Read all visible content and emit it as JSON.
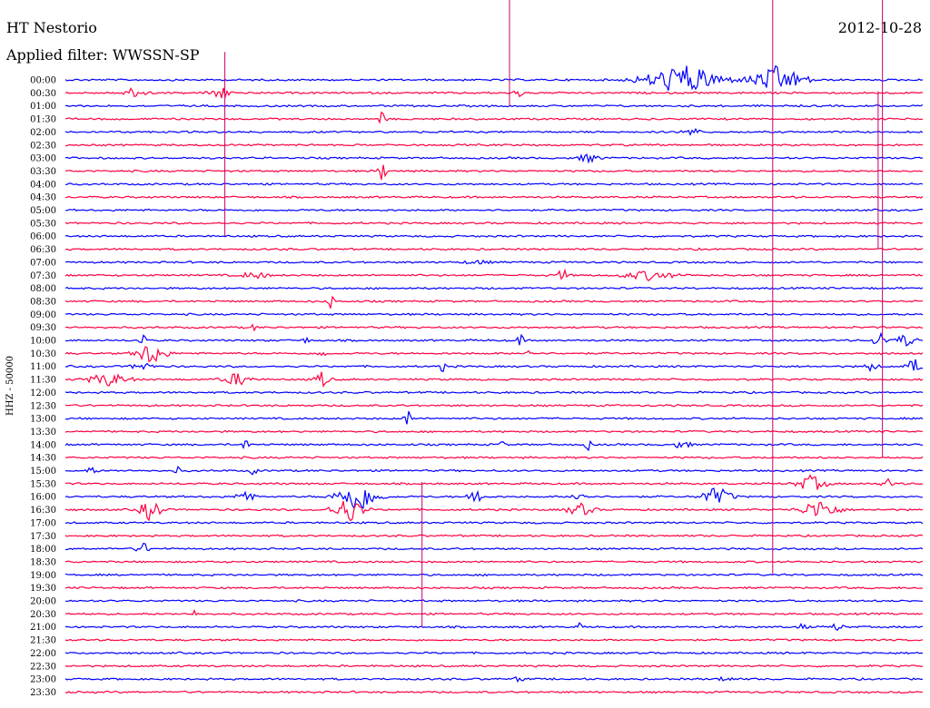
{
  "header": {
    "station": "HT Nestorio",
    "date": "2012-10-28",
    "filter": "Applied filter: WWSSN-SP"
  },
  "chart_data": {
    "type": "line",
    "chart_kind": "helicorder",
    "ylabel": "HHZ - 50000",
    "row_labels": [
      "00:00",
      "00:30",
      "01:00",
      "01:30",
      "02:00",
      "02:30",
      "03:00",
      "03:30",
      "04:00",
      "04:30",
      "05:00",
      "05:30",
      "06:00",
      "06:30",
      "07:00",
      "07:30",
      "08:00",
      "08:30",
      "09:00",
      "09:30",
      "10:00",
      "10:30",
      "11:00",
      "11:30",
      "12:00",
      "12:30",
      "13:00",
      "13:30",
      "14:00",
      "14:30",
      "15:00",
      "15:30",
      "16:00",
      "16:30",
      "17:00",
      "17:30",
      "18:00",
      "18:30",
      "19:00",
      "19:30",
      "20:00",
      "20:30",
      "21:00",
      "21:30",
      "22:00",
      "22:30",
      "23:00",
      "23:30"
    ],
    "colors": {
      "even": "#0000ff",
      "odd": "#ff0040"
    },
    "grid": false,
    "events": [
      {
        "row": 0,
        "center": 0.72,
        "width": 0.1,
        "amp": 18
      },
      {
        "row": 0,
        "center": 0.83,
        "width": 0.07,
        "amp": 16
      },
      {
        "row": 1,
        "center": 0.08,
        "width": 0.04,
        "amp": 6
      },
      {
        "row": 1,
        "center": 0.18,
        "width": 0.03,
        "amp": 9
      },
      {
        "row": 1,
        "center": 0.53,
        "width": 0.02,
        "amp": 5
      },
      {
        "row": 3,
        "center": 0.37,
        "width": 0.01,
        "amp": 10
      },
      {
        "row": 4,
        "center": 0.73,
        "width": 0.03,
        "amp": 5
      },
      {
        "row": 6,
        "center": 0.61,
        "width": 0.04,
        "amp": 5
      },
      {
        "row": 7,
        "center": 0.37,
        "width": 0.01,
        "amp": 14
      },
      {
        "row": 14,
        "center": 0.48,
        "width": 0.05,
        "amp": 3
      },
      {
        "row": 15,
        "center": 0.22,
        "width": 0.04,
        "amp": 5
      },
      {
        "row": 15,
        "center": 0.58,
        "width": 0.01,
        "amp": 12
      },
      {
        "row": 15,
        "center": 0.68,
        "width": 0.08,
        "amp": 6
      },
      {
        "row": 17,
        "center": 0.31,
        "width": 0.01,
        "amp": 10
      },
      {
        "row": 19,
        "center": 0.22,
        "width": 0.01,
        "amp": 5
      },
      {
        "row": 20,
        "center": 0.09,
        "width": 0.01,
        "amp": 10
      },
      {
        "row": 20,
        "center": 0.28,
        "width": 0.01,
        "amp": 5
      },
      {
        "row": 20,
        "center": 0.53,
        "width": 0.01,
        "amp": 9
      },
      {
        "row": 20,
        "center": 0.95,
        "width": 0.02,
        "amp": 10
      },
      {
        "row": 20,
        "center": 0.98,
        "width": 0.03,
        "amp": 8
      },
      {
        "row": 21,
        "center": 0.1,
        "width": 0.04,
        "amp": 14
      },
      {
        "row": 21,
        "center": 0.3,
        "width": 0.01,
        "amp": 10
      },
      {
        "row": 21,
        "center": 0.54,
        "width": 0.01,
        "amp": 8
      },
      {
        "row": 22,
        "center": 0.09,
        "width": 0.03,
        "amp": 6
      },
      {
        "row": 22,
        "center": 0.44,
        "width": 0.01,
        "amp": 7
      },
      {
        "row": 22,
        "center": 0.94,
        "width": 0.02,
        "amp": 6
      },
      {
        "row": 22,
        "center": 0.99,
        "width": 0.02,
        "amp": 10
      },
      {
        "row": 23,
        "center": 0.05,
        "width": 0.06,
        "amp": 8
      },
      {
        "row": 23,
        "center": 0.2,
        "width": 0.04,
        "amp": 8
      },
      {
        "row": 23,
        "center": 0.3,
        "width": 0.02,
        "amp": 10
      },
      {
        "row": 26,
        "center": 0.4,
        "width": 0.01,
        "amp": 12
      },
      {
        "row": 28,
        "center": 0.21,
        "width": 0.01,
        "amp": 8
      },
      {
        "row": 28,
        "center": 0.51,
        "width": 0.01,
        "amp": 6
      },
      {
        "row": 28,
        "center": 0.61,
        "width": 0.01,
        "amp": 7
      },
      {
        "row": 28,
        "center": 0.72,
        "width": 0.02,
        "amp": 7
      },
      {
        "row": 30,
        "center": 0.03,
        "width": 0.02,
        "amp": 5
      },
      {
        "row": 30,
        "center": 0.13,
        "width": 0.01,
        "amp": 6
      },
      {
        "row": 30,
        "center": 0.22,
        "width": 0.01,
        "amp": 7
      },
      {
        "row": 31,
        "center": 0.87,
        "width": 0.04,
        "amp": 10
      },
      {
        "row": 31,
        "center": 0.96,
        "width": 0.02,
        "amp": 6
      },
      {
        "row": 32,
        "center": 0.21,
        "width": 0.02,
        "amp": 12
      },
      {
        "row": 32,
        "center": 0.34,
        "width": 0.05,
        "amp": 20
      },
      {
        "row": 32,
        "center": 0.48,
        "width": 0.02,
        "amp": 14
      },
      {
        "row": 32,
        "center": 0.6,
        "width": 0.02,
        "amp": 8
      },
      {
        "row": 32,
        "center": 0.76,
        "width": 0.04,
        "amp": 12
      },
      {
        "row": 33,
        "center": 0.1,
        "width": 0.03,
        "amp": 14
      },
      {
        "row": 33,
        "center": 0.33,
        "width": 0.04,
        "amp": 16
      },
      {
        "row": 33,
        "center": 0.6,
        "width": 0.04,
        "amp": 8
      },
      {
        "row": 33,
        "center": 0.88,
        "width": 0.05,
        "amp": 12
      },
      {
        "row": 36,
        "center": 0.09,
        "width": 0.02,
        "amp": 8
      },
      {
        "row": 41,
        "center": 0.15,
        "width": 0.01,
        "amp": 5
      },
      {
        "row": 42,
        "center": 0.6,
        "width": 0.01,
        "amp": 5
      },
      {
        "row": 42,
        "center": 0.86,
        "width": 0.02,
        "amp": 4
      },
      {
        "row": 42,
        "center": 0.9,
        "width": 0.02,
        "amp": 5
      },
      {
        "row": 46,
        "center": 0.53,
        "width": 0.02,
        "amp": 4
      },
      {
        "row": 46,
        "center": 0.77,
        "width": 0.02,
        "amp": 5
      }
    ],
    "spikes": [
      {
        "x": 0.825,
        "from_row": 0,
        "to_row": 38
      },
      {
        "x": 0.953,
        "from_row": 0,
        "to_row": 29
      },
      {
        "x": 0.948,
        "from_row": 7,
        "to_row": 13
      },
      {
        "x": 0.186,
        "from_row": 4,
        "to_row": 12
      },
      {
        "x": 0.416,
        "from_row": 37,
        "to_row": 42
      },
      {
        "x": 0.518,
        "from_row": 0,
        "to_row": 2
      }
    ]
  }
}
